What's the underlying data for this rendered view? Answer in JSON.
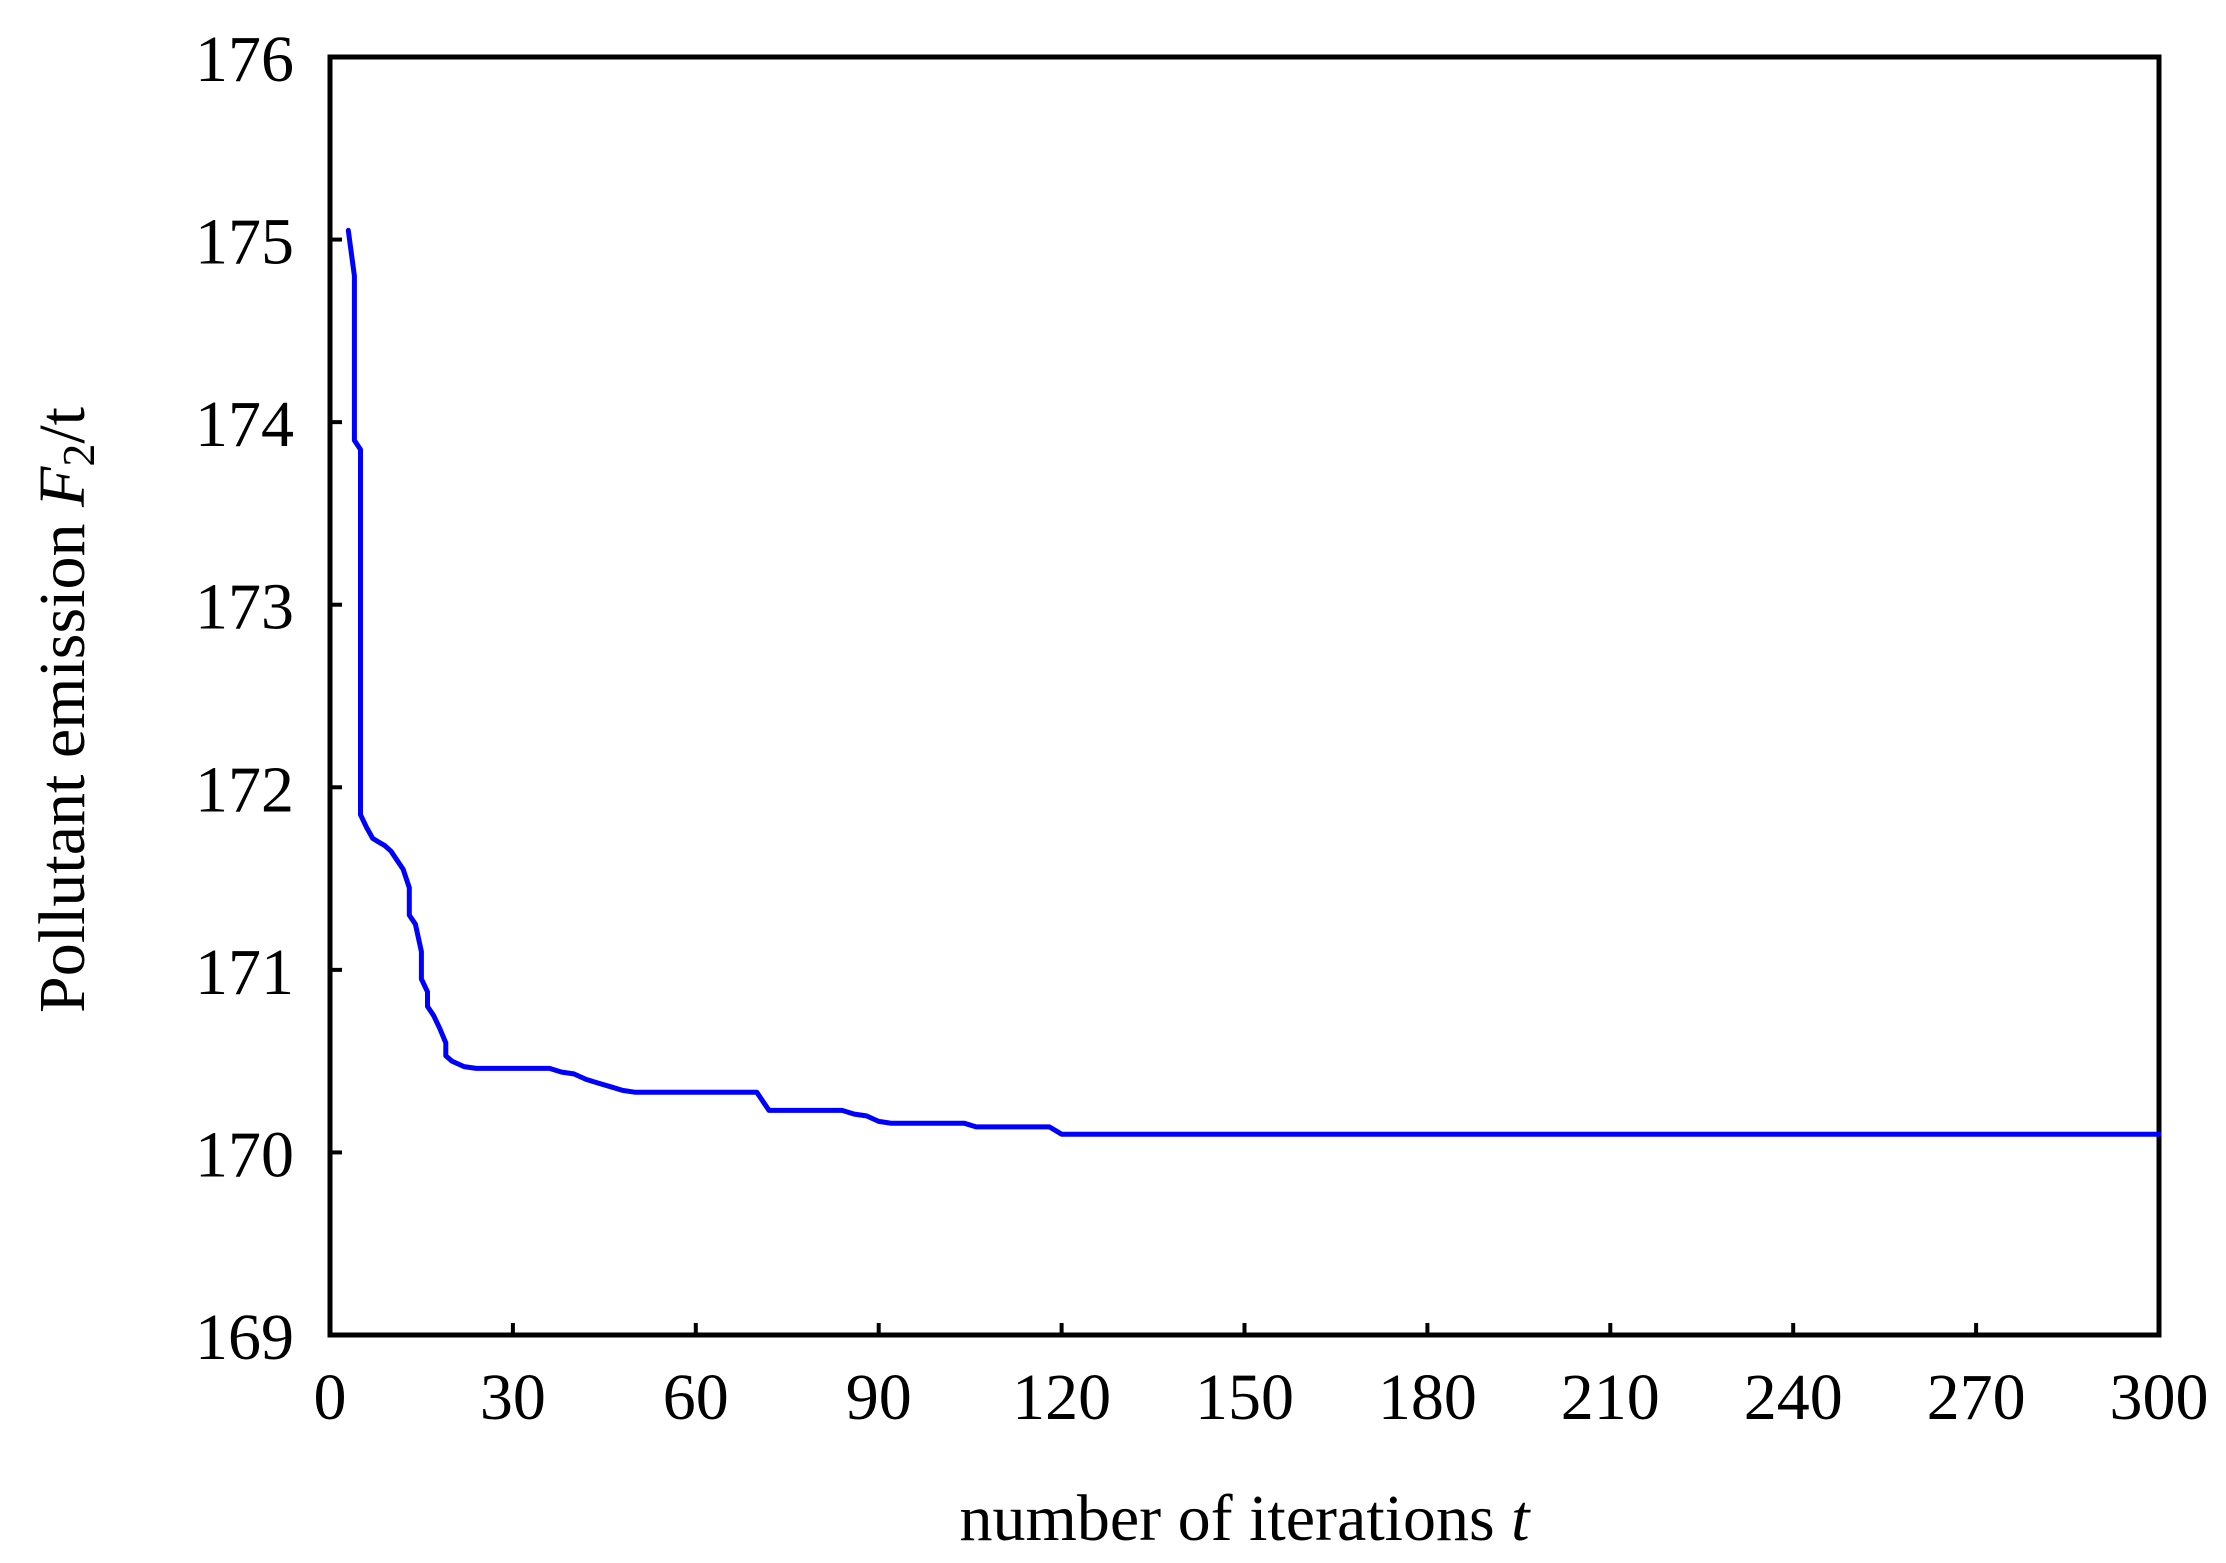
{
  "chart_data": {
    "type": "line",
    "title": "",
    "xlabel": {
      "text": "number of iterations ",
      "var": "t"
    },
    "ylabel": {
      "text": "Pollutant emission ",
      "var": "F",
      "sub": "2",
      "unit": "/t"
    },
    "xlim": [
      0,
      300
    ],
    "ylim": [
      169,
      176
    ],
    "xticks": [
      0,
      30,
      60,
      90,
      120,
      150,
      180,
      210,
      240,
      270,
      300
    ],
    "yticks": [
      169,
      170,
      171,
      172,
      173,
      174,
      175,
      176
    ],
    "grid": false,
    "legend": "none",
    "series": [
      {
        "color": "#0000ff",
        "x": [
          3,
          4,
          4,
          4,
          5,
          5,
          5,
          6,
          7,
          8,
          9,
          10,
          11,
          12,
          13,
          13,
          14,
          15,
          15,
          16,
          16,
          17,
          18,
          19,
          19,
          20,
          22,
          24,
          30,
          36,
          38,
          40,
          42,
          44,
          46,
          48,
          50,
          56,
          64,
          68,
          70,
          72,
          74,
          76,
          80,
          84,
          86,
          88,
          90,
          92,
          96,
          104,
          106,
          118,
          120,
          300
        ],
        "y": [
          175.05,
          174.8,
          174.05,
          173.9,
          173.85,
          173.8,
          171.85,
          171.78,
          171.72,
          171.7,
          171.68,
          171.65,
          171.6,
          171.55,
          171.45,
          171.3,
          171.25,
          171.1,
          170.95,
          170.88,
          170.8,
          170.75,
          170.68,
          170.6,
          170.53,
          170.5,
          170.47,
          170.46,
          170.46,
          170.46,
          170.44,
          170.43,
          170.4,
          170.38,
          170.36,
          170.34,
          170.33,
          170.33,
          170.33,
          170.33,
          170.33,
          170.23,
          170.23,
          170.23,
          170.23,
          170.23,
          170.21,
          170.2,
          170.17,
          170.16,
          170.16,
          170.16,
          170.14,
          170.14,
          170.1,
          170.1
        ]
      }
    ]
  }
}
